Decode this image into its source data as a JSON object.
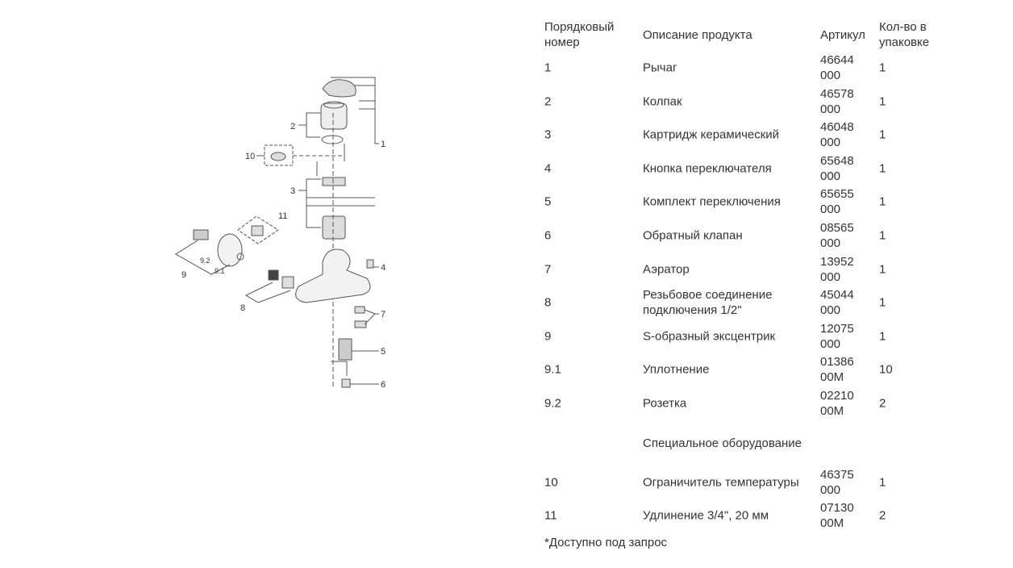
{
  "diagram": {
    "callouts": [
      "1",
      "2",
      "3",
      "4",
      "5",
      "6",
      "7",
      "8",
      "9",
      "9.1",
      "9.2",
      "10",
      "11"
    ]
  },
  "table": {
    "headers": {
      "num": "Порядковый номер",
      "desc": "Описание продукта",
      "article": "Артикул",
      "qty": "Кол-во в упаковке"
    },
    "rows": [
      {
        "num": "1",
        "desc": "Рычаг",
        "art1": "46644",
        "art2": "000",
        "qty": "1"
      },
      {
        "num": "2",
        "desc": "Колпак",
        "art1": "46578",
        "art2": "000",
        "qty": "1"
      },
      {
        "num": "3",
        "desc": "Картридж керамический",
        "art1": "46048",
        "art2": "000",
        "qty": "1"
      },
      {
        "num": "4",
        "desc": "Кнопка переключателя",
        "art1": "65648",
        "art2": "000",
        "qty": "1"
      },
      {
        "num": "5",
        "desc": "Комплект переключения",
        "art1": "65655",
        "art2": "000",
        "qty": "1"
      },
      {
        "num": "6",
        "desc": "Обратный клапан",
        "art1": "08565",
        "art2": "000",
        "qty": "1"
      },
      {
        "num": "7",
        "desc": "Аэратор",
        "art1": "13952",
        "art2": "000",
        "qty": "1"
      },
      {
        "num": "8",
        "desc": "Резьбовое соединение подключения 1/2\"",
        "art1": "45044",
        "art2": "000",
        "qty": "1"
      },
      {
        "num": "9",
        "desc": "S-образный эксцентрик",
        "art1": "12075",
        "art2": "000",
        "qty": "1"
      },
      {
        "num": "9.1",
        "desc": "Уплотнение",
        "art1": "01386",
        "art2": "00M",
        "qty": "10"
      },
      {
        "num": "9.2",
        "desc": "Розетка",
        "art1": "02210",
        "art2": "00M",
        "qty": "2"
      }
    ],
    "special_heading": "Специальное оборудование",
    "special_rows": [
      {
        "num": "10",
        "desc": "Ограничитель температуры",
        "art1": "46375",
        "art2": "000",
        "qty": "1"
      },
      {
        "num": "11",
        "desc": "Удлинение 3/4\", 20 мм",
        "art1": "07130",
        "art2": "00M",
        "qty": "2"
      }
    ],
    "footnote": "*Доступно под запрос"
  }
}
